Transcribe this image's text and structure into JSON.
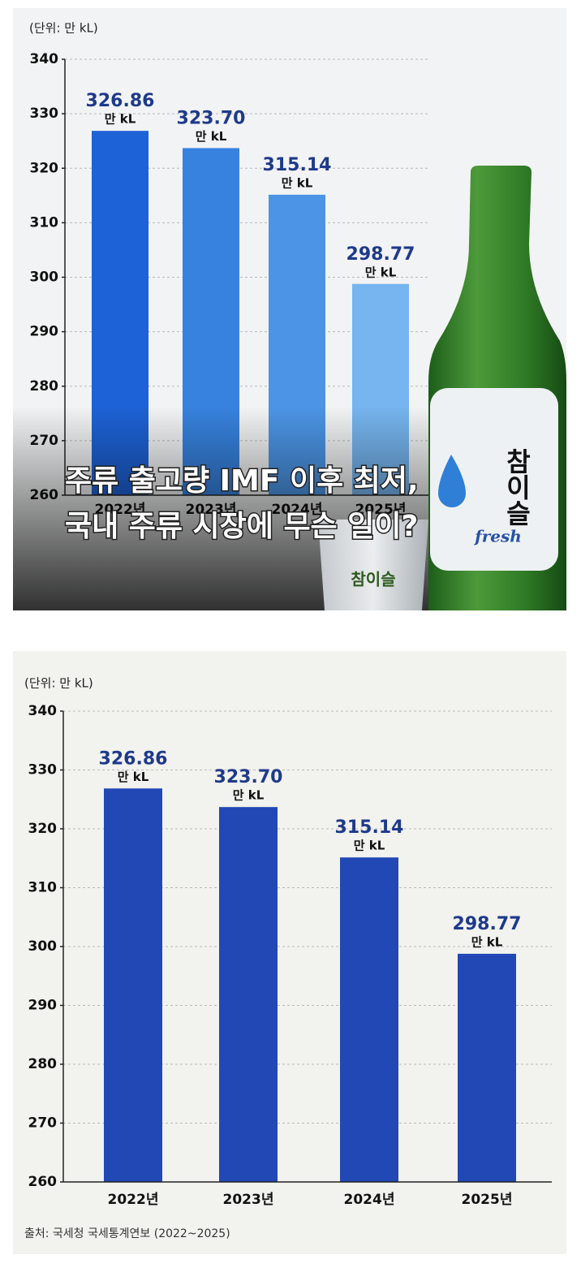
{
  "chart_data": [
    {
      "type": "bar",
      "unit_note": "(단위: 만 kL)",
      "categories": [
        "2022년",
        "2023년",
        "2024년",
        "2025년"
      ],
      "values": [
        326.86,
        323.7,
        315.14,
        298.77
      ],
      "value_labels": [
        "326.86",
        "323.70",
        "315.14",
        "298.77"
      ],
      "value_unit": "만 kL",
      "colors": [
        "#1d62d6",
        "#3782df",
        "#4c95e6",
        "#76b5ef"
      ],
      "ylim": [
        260,
        340
      ],
      "yticks": [
        260,
        270,
        280,
        290,
        300,
        310,
        320,
        330,
        340
      ],
      "grid": true,
      "headline": [
        "주류 출고량 IMF 이후 최저,",
        "국내 주류 시장에 무슨 일이?"
      ],
      "brand": "참이슬",
      "brand_tagline": "fresh"
    },
    {
      "type": "bar",
      "unit_note": "(단위: 만 kL)",
      "categories": [
        "2022년",
        "2023년",
        "2024년",
        "2025년"
      ],
      "values": [
        326.86,
        323.7,
        315.14,
        298.77
      ],
      "value_labels": [
        "326.86",
        "323.70",
        "315.14",
        "298.77"
      ],
      "value_unit": "만 kL",
      "color": "#2148b4",
      "ylim": [
        260,
        340
      ],
      "yticks": [
        260,
        270,
        280,
        290,
        300,
        310,
        320,
        330,
        340
      ],
      "grid": true,
      "source": "출처: 국세청 국세통계연보 (2022~2025)"
    }
  ]
}
